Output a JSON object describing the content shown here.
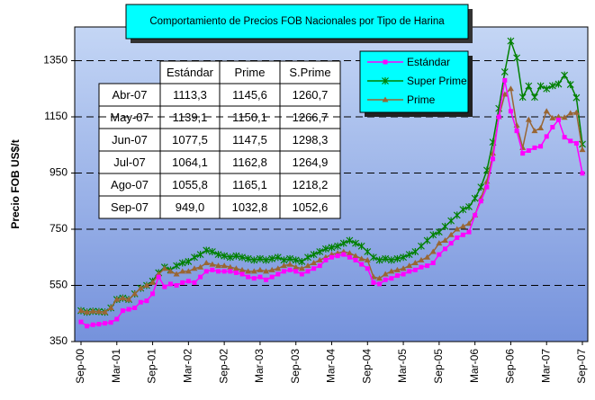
{
  "chart_data": {
    "type": "line",
    "title": "Comportamiento de Precios FOB Nacionales por Tipo de Harina",
    "y_label": "Precio FOB US$/t",
    "categories": [
      "Sep-00",
      null,
      null,
      null,
      null,
      null,
      "Mar-01",
      null,
      null,
      null,
      null,
      null,
      "Sep-01",
      null,
      null,
      null,
      null,
      null,
      "Mar-02",
      null,
      null,
      null,
      null,
      null,
      "Sep-02",
      null,
      null,
      null,
      null,
      null,
      "Mar-03",
      null,
      null,
      null,
      null,
      null,
      "Sep-03",
      null,
      null,
      null,
      null,
      null,
      "Mar-04",
      null,
      null,
      null,
      null,
      null,
      "Sep-04",
      null,
      null,
      null,
      null,
      null,
      "Mar-05",
      null,
      null,
      null,
      null,
      null,
      "Sep-05",
      null,
      null,
      null,
      null,
      null,
      "Mar-06",
      null,
      null,
      null,
      null,
      null,
      "Sep-06",
      null,
      null,
      null,
      null,
      null,
      "Mar-07",
      null,
      null,
      null,
      null,
      null,
      "Sep-07"
    ],
    "series": [
      {
        "name": "Estándar",
        "color": "#ff00ff",
        "marker": "square",
        "values": [
          420,
          405,
          410,
          412,
          415,
          418,
          430,
          460,
          465,
          470,
          490,
          495,
          520,
          580,
          545,
          555,
          550,
          560,
          565,
          560,
          580,
          600,
          605,
          600,
          600,
          600,
          595,
          590,
          580,
          575,
          580,
          570,
          580,
          590,
          600,
          605,
          600,
          590,
          600,
          610,
          620,
          640,
          650,
          655,
          660,
          650,
          640,
          625,
          610,
          560,
          555,
          570,
          575,
          585,
          590,
          600,
          605,
          615,
          620,
          630,
          660,
          680,
          700,
          720,
          730,
          740,
          800,
          850,
          900,
          1000,
          1150,
          1280,
          1170,
          1100,
          1020,
          1030,
          1040,
          1045,
          1080,
          1113.3,
          1139.1,
          1077.5,
          1064.1,
          1055.8,
          949.0
        ]
      },
      {
        "name": "Super Prime",
        "color": "#008000",
        "marker": "star",
        "values": [
          460,
          455,
          458,
          457,
          455,
          470,
          500,
          505,
          500,
          520,
          540,
          550,
          565,
          595,
          615,
          605,
          620,
          630,
          635,
          650,
          660,
          675,
          670,
          660,
          655,
          650,
          655,
          650,
          645,
          640,
          645,
          640,
          645,
          650,
          640,
          645,
          640,
          635,
          650,
          660,
          670,
          680,
          685,
          690,
          700,
          710,
          700,
          690,
          670,
          650,
          640,
          645,
          640,
          645,
          650,
          660,
          670,
          690,
          710,
          730,
          740,
          760,
          780,
          800,
          820,
          830,
          860,
          900,
          960,
          1060,
          1180,
          1310,
          1420,
          1360,
          1220,
          1260,
          1220,
          1260,
          1250,
          1260.7,
          1266.7,
          1298.3,
          1264.9,
          1218.2,
          1052.6
        ]
      },
      {
        "name": "Prime",
        "color": "#996633",
        "marker": "triangle",
        "values": [
          460,
          455,
          458,
          457,
          455,
          470,
          500,
          505,
          500,
          520,
          540,
          550,
          560,
          590,
          610,
          600,
          590,
          600,
          600,
          610,
          615,
          630,
          625,
          620,
          620,
          615,
          610,
          605,
          600,
          600,
          605,
          600,
          605,
          610,
          620,
          625,
          615,
          610,
          620,
          630,
          640,
          650,
          660,
          665,
          670,
          665,
          655,
          645,
          640,
          580,
          575,
          590,
          600,
          605,
          610,
          620,
          630,
          640,
          650,
          670,
          700,
          710,
          730,
          750,
          760,
          770,
          800,
          860,
          920,
          1020,
          1150,
          1230,
          1250,
          1120,
          1040,
          1140,
          1100,
          1110,
          1170,
          1145.6,
          1150.1,
          1147.5,
          1162.8,
          1165.1,
          1032.8
        ]
      }
    ],
    "ylim": [
      350,
      1470
    ],
    "yticks": [
      350,
      550,
      750,
      950,
      1150,
      1350
    ],
    "grid": true,
    "table": {
      "header": [
        "Estándar",
        "Prime",
        "S.Prime"
      ],
      "rows": [
        [
          "Abr-07",
          "1113,3",
          "1145,6",
          "1260,7"
        ],
        [
          "May-07",
          "1139,1",
          "1150,1",
          "1266,7"
        ],
        [
          "Jun-07",
          "1077,5",
          "1147,5",
          "1298,3"
        ],
        [
          "Jul-07",
          "1064,1",
          "1162,8",
          "1264,9"
        ],
        [
          "Ago-07",
          "1055,8",
          "1165,1",
          "1218,2"
        ],
        [
          "Sep-07",
          "949,0",
          "1032,8",
          "1052,6"
        ]
      ]
    }
  }
}
